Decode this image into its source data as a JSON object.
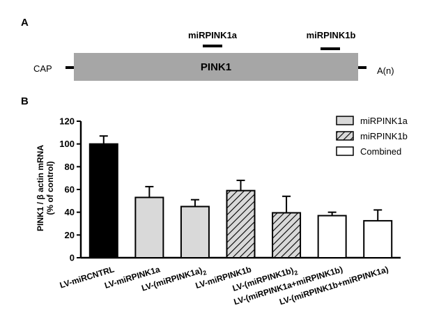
{
  "panel_a": {
    "label": "A",
    "gene_label": "PINK1",
    "left_end": "CAP",
    "right_end": "A(n)",
    "target_a": "miRPINK1a",
    "target_b": "miRPINK1b",
    "colors": {
      "gene_bar": "#a6a6a6",
      "site": "#000000"
    }
  },
  "panel_b": {
    "label": "B",
    "ylabel_line1": "PINK1 / β actin mRNA",
    "ylabel_line2": "(% of control)"
  },
  "chart_data": {
    "type": "bar",
    "categories": [
      "LV-miRCNTRL",
      "LV-miRPINK1a",
      "LV-(miRPINK1a)2",
      "LV-miRPINK1b",
      "LV-(miRPINK1b)2",
      "LV-(miRPINK1a+miRPINK1b)",
      "LV-(miRPINK1b+miRPINK1a)"
    ],
    "category_labels": [
      {
        "main": "LV-miRCNTRL",
        "sub": ""
      },
      {
        "main": "LV-miRPINK1a",
        "sub": ""
      },
      {
        "main": "LV-(miRPINK1a)",
        "sub": "2"
      },
      {
        "main": "LV-miRPINK1b",
        "sub": ""
      },
      {
        "main": "LV-(miRPINK1b)",
        "sub": "2"
      },
      {
        "main": "LV-(miRPINK1a+miRPINK1b)",
        "sub": ""
      },
      {
        "main": "LV-(miRPINK1b+miRPINK1a)",
        "sub": ""
      }
    ],
    "values": [
      100,
      53,
      45,
      59,
      39.5,
      37,
      32.5
    ],
    "errors": [
      7,
      9.5,
      6,
      9,
      14.5,
      3,
      9.5
    ],
    "groups": [
      "control",
      "miRPINK1a",
      "miRPINK1a",
      "miRPINK1b",
      "miRPINK1b",
      "combined",
      "combined"
    ],
    "ylabel": "PINK1 / β actin mRNA (% of control)",
    "ylim": [
      0,
      120
    ],
    "yticks": [
      0,
      20,
      40,
      60,
      80,
      100,
      120
    ],
    "legend": [
      {
        "key": "miRPINK1a",
        "label": "miRPINK1a",
        "fill": "#d9d9d9",
        "pattern": "solid"
      },
      {
        "key": "miRPINK1b",
        "label": "miRPINK1b",
        "fill": "#d9d9d9",
        "pattern": "hatch"
      },
      {
        "key": "combined",
        "label": "Combined",
        "fill": "#ffffff",
        "pattern": "solid"
      }
    ],
    "legend_position": "top-right",
    "group_colors": {
      "control": "#000000",
      "miRPINK1a": "#d9d9d9",
      "miRPINK1b": "#d9d9d9",
      "combined": "#ffffff"
    }
  }
}
